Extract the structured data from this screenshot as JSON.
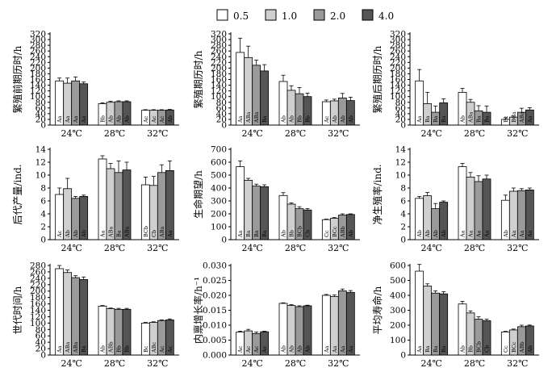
{
  "legend": {
    "entries": [
      "0.5",
      "1.0",
      "2.0",
      "4.0"
    ],
    "colors": [
      "#ffffff",
      "#cfcfcf",
      "#9a9a9a",
      "#555555"
    ]
  },
  "chart_data": [
    {
      "type": "bar",
      "ylabel": "繁殖前期历时/h",
      "ylim": [
        0,
        320
      ],
      "yticks": [
        "0",
        "20",
        "40",
        "60",
        "80",
        "100",
        "120",
        "140",
        "160",
        "180",
        "200",
        "220",
        "240",
        "260",
        "280",
        "300",
        "320"
      ],
      "categories": [
        "24℃",
        "28℃",
        "32℃"
      ],
      "series": [
        {
          "name": "0.5",
          "values": [
            155,
            75,
            52
          ],
          "errors": [
            10,
            3,
            2
          ]
        },
        {
          "name": "1.0",
          "values": [
            147,
            80,
            52
          ],
          "errors": [
            18,
            4,
            2
          ]
        },
        {
          "name": "2.0",
          "values": [
            155,
            82,
            52
          ],
          "errors": [
            14,
            3,
            2
          ]
        },
        {
          "name": "4.0",
          "values": [
            145,
            82,
            53
          ],
          "errors": [
            6,
            3,
            2
          ]
        }
      ],
      "labels": [
        [
          "Aa",
          "Aa",
          "Aa",
          "Aa"
        ],
        [
          "Bb",
          "Ab",
          "Ab",
          "Ab"
        ],
        [
          "Ac",
          "Ac",
          "Ac",
          "Ab"
        ]
      ]
    },
    {
      "type": "bar",
      "ylabel": "繁殖期历时/h",
      "ylim": [
        0,
        320
      ],
      "yticks": [
        "0",
        "20",
        "40",
        "60",
        "80",
        "100",
        "120",
        "140",
        "160",
        "180",
        "200",
        "220",
        "240",
        "260",
        "280",
        "300",
        "320"
      ],
      "categories": [
        "24℃",
        "28℃",
        "32℃"
      ],
      "series": [
        {
          "name": "0.5",
          "values": [
            255,
            153,
            82
          ],
          "errors": [
            50,
            22,
            6
          ]
        },
        {
          "name": "1.0",
          "values": [
            237,
            122,
            85
          ],
          "errors": [
            40,
            16,
            6
          ]
        },
        {
          "name": "2.0",
          "values": [
            210,
            110,
            95
          ],
          "errors": [
            18,
            22,
            16
          ]
        },
        {
          "name": "4.0",
          "values": [
            190,
            100,
            86
          ],
          "errors": [
            22,
            12,
            12
          ]
        }
      ],
      "labels": [
        [
          "Aa",
          "ABa",
          "ABa",
          "Ba"
        ],
        [
          "Ab",
          "Ab",
          "Bb",
          "Bb"
        ],
        [
          "Ac",
          "Ab",
          "Ab",
          "Ab"
        ]
      ]
    },
    {
      "type": "bar",
      "ylabel": "繁殖后期历时/h",
      "ylim": [
        0,
        320
      ],
      "yticks": [
        "0",
        "20",
        "40",
        "60",
        "80",
        "100",
        "120",
        "140",
        "160",
        "180",
        "200",
        "220",
        "240",
        "260",
        "280",
        "300",
        "320"
      ],
      "categories": [
        "24℃",
        "28℃",
        "32℃"
      ],
      "series": [
        {
          "name": "0.5",
          "values": [
            155,
            115,
            20
          ],
          "errors": [
            40,
            14,
            6
          ]
        },
        {
          "name": "1.0",
          "values": [
            75,
            80,
            28
          ],
          "errors": [
            40,
            10,
            4
          ]
        },
        {
          "name": "2.0",
          "values": [
            45,
            50,
            45
          ],
          "errors": [
            22,
            18,
            14
          ]
        },
        {
          "name": "4.0",
          "values": [
            78,
            45,
            53
          ],
          "errors": [
            14,
            22,
            8
          ]
        }
      ],
      "labels": [
        [
          "Aa",
          "Ba",
          "Ba",
          "Ba"
        ],
        [
          "Ab",
          "ABa",
          "Ba",
          "Ba"
        ],
        [
          "Bc",
          "BCa",
          "ABa",
          "Aa"
        ]
      ]
    },
    {
      "type": "bar",
      "ylabel": "后代产量/ind.",
      "ylim": [
        0,
        14
      ],
      "yticks": [
        "0",
        "2",
        "4",
        "6",
        "8",
        "10",
        "12",
        "14"
      ],
      "categories": [
        "24℃",
        "28℃",
        "32℃"
      ],
      "series": [
        {
          "name": "0.5",
          "values": [
            7.0,
            12.5,
            8.5
          ],
          "errors": [
            1.0,
            0.5,
            1.2
          ]
        },
        {
          "name": "1.0",
          "values": [
            7.9,
            11.0,
            8.4
          ],
          "errors": [
            1.6,
            0.8,
            1.4
          ]
        },
        {
          "name": "2.0",
          "values": [
            6.4,
            10.4,
            10.4
          ],
          "errors": [
            0.3,
            1.8,
            1.2
          ]
        },
        {
          "name": "4.0",
          "values": [
            6.7,
            10.8,
            10.7
          ],
          "errors": [
            0.2,
            1.2,
            1.5
          ]
        }
      ],
      "labels": [
        [
          "Ac",
          "Ab",
          "Ab",
          "Ab"
        ],
        [
          "Aa",
          "ABa",
          "Ba",
          "ABa"
        ],
        [
          "BCb",
          "Cb",
          "ABa",
          "Aa"
        ]
      ]
    },
    {
      "type": "bar",
      "ylabel": "生命期望/h",
      "ylim": [
        0,
        700
      ],
      "yticks": [
        "0",
        "100",
        "200",
        "300",
        "400",
        "500",
        "600",
        "700"
      ],
      "categories": [
        "24℃",
        "28℃",
        "32℃"
      ],
      "series": [
        {
          "name": "0.5",
          "values": [
            565,
            342,
            155
          ],
          "errors": [
            45,
            22,
            4
          ]
        },
        {
          "name": "1.0",
          "values": [
            460,
            275,
            165
          ],
          "errors": [
            15,
            10,
            6
          ]
        },
        {
          "name": "2.0",
          "values": [
            415,
            240,
            190
          ],
          "errors": [
            15,
            15,
            10
          ]
        },
        {
          "name": "4.0",
          "values": [
            410,
            230,
            195
          ],
          "errors": [
            15,
            10,
            5
          ]
        }
      ],
      "labels": [
        [
          "Aa",
          "Ba",
          "Ba",
          "Ba"
        ],
        [
          "Ab",
          "Bb",
          "BCb",
          "Cb"
        ],
        [
          "Cc",
          "BCc",
          "ABb",
          "Ab"
        ]
      ]
    },
    {
      "type": "bar",
      "ylabel": "净生殖率/ind.",
      "ylim": [
        0,
        14
      ],
      "yticks": [
        "0",
        "2",
        "4",
        "6",
        "8",
        "10",
        "12",
        "14"
      ],
      "categories": [
        "24℃",
        "28℃",
        "32℃"
      ],
      "series": [
        {
          "name": "0.5",
          "values": [
            6.4,
            11.3,
            6.1
          ],
          "errors": [
            0.3,
            0.5,
            0.8
          ]
        },
        {
          "name": "1.0",
          "values": [
            6.8,
            9.7,
            7.5
          ],
          "errors": [
            0.5,
            0.7,
            0.5
          ]
        },
        {
          "name": "2.0",
          "values": [
            4.8,
            9.0,
            7.6
          ],
          "errors": [
            0.8,
            0.9,
            0.3
          ]
        },
        {
          "name": "4.0",
          "values": [
            5.8,
            9.4,
            7.7
          ],
          "errors": [
            0.2,
            0.6,
            0.3
          ]
        }
      ],
      "labels": [
        [
          "Ab",
          "Ab",
          "Ab",
          "Ab"
        ],
        [
          "Aa",
          "Aa",
          "Aa",
          "Aa"
        ],
        [
          "Ab",
          "Aa",
          "Aa",
          "Aa"
        ]
      ]
    },
    {
      "type": "bar",
      "ylabel": "世代时间/h",
      "ylim": [
        0,
        280
      ],
      "yticks": [
        "0",
        "20",
        "40",
        "60",
        "80",
        "100",
        "120",
        "140",
        "160",
        "180",
        "200",
        "220",
        "240",
        "260",
        "280"
      ],
      "categories": [
        "24℃",
        "28℃",
        "32℃"
      ],
      "series": [
        {
          "name": "0.5",
          "values": [
            270,
            153,
            100
          ],
          "errors": [
            10,
            2,
            2
          ]
        },
        {
          "name": "1.0",
          "values": [
            258,
            145,
            102
          ],
          "errors": [
            8,
            2,
            2
          ]
        },
        {
          "name": "2.0",
          "values": [
            242,
            143,
            108
          ],
          "errors": [
            6,
            3,
            2
          ]
        },
        {
          "name": "4.0",
          "values": [
            236,
            143,
            110
          ],
          "errors": [
            8,
            3,
            3
          ]
        }
      ],
      "labels": [
        [
          "Aa",
          "ABa",
          "ABa",
          "Ba"
        ],
        [
          "Ab",
          "ABb",
          "Bb",
          "Bb"
        ],
        [
          "Bc",
          "ABc",
          "Ac",
          "Ac"
        ]
      ]
    },
    {
      "type": "bar",
      "ylabel": "内禀增长率/h⁻¹",
      "ylim": [
        0,
        0.03
      ],
      "yticks": [
        "0.000",
        "0.005",
        "0.010",
        "0.015",
        "0.020",
        "0.025",
        "0.030"
      ],
      "categories": [
        "24℃",
        "28℃",
        "32℃"
      ],
      "series": [
        {
          "name": "0.5",
          "values": [
            0.0077,
            0.0173,
            0.02
          ],
          "errors": [
            0.0003,
            0.0002,
            0.0003
          ]
        },
        {
          "name": "1.0",
          "values": [
            0.0081,
            0.0166,
            0.0196
          ],
          "errors": [
            0.0005,
            0.0003,
            0.0005
          ]
        },
        {
          "name": "2.0",
          "values": [
            0.0072,
            0.0162,
            0.0215
          ],
          "errors": [
            0.0005,
            0.0003,
            0.0006
          ]
        },
        {
          "name": "4.0",
          "values": [
            0.0078,
            0.0165,
            0.021
          ],
          "errors": [
            0.0002,
            0.0002,
            0.0006
          ]
        }
      ],
      "labels": [
        [
          "Ac",
          "Ac",
          "Ac",
          "Ac"
        ],
        [
          "Ab",
          "Ab",
          "Ab",
          "Ab"
        ],
        [
          "Aa",
          "Aa",
          "Aa",
          "Aa"
        ]
      ]
    },
    {
      "type": "bar",
      "ylabel": "平均寿命/h",
      "ylim": [
        0,
        600
      ],
      "yticks": [
        "0",
        "100",
        "200",
        "300",
        "400",
        "500",
        "600"
      ],
      "categories": [
        "24℃",
        "28℃",
        "32℃"
      ],
      "series": [
        {
          "name": "0.5",
          "values": [
            562,
            342,
            155
          ],
          "errors": [
            45,
            18,
            4
          ]
        },
        {
          "name": "1.0",
          "values": [
            462,
            282,
            168
          ],
          "errors": [
            15,
            14,
            6
          ]
        },
        {
          "name": "2.0",
          "values": [
            415,
            240,
            190
          ],
          "errors": [
            15,
            16,
            10
          ]
        },
        {
          "name": "4.0",
          "values": [
            410,
            230,
            195
          ],
          "errors": [
            15,
            10,
            6
          ]
        }
      ],
      "labels": [
        [
          "Aa",
          "Ba",
          "Ba",
          "Ba"
        ],
        [
          "Ab",
          "Bb",
          "BCb",
          "Cb"
        ],
        [
          "Cc",
          "BCc",
          "ABb",
          "Ab"
        ]
      ]
    }
  ]
}
